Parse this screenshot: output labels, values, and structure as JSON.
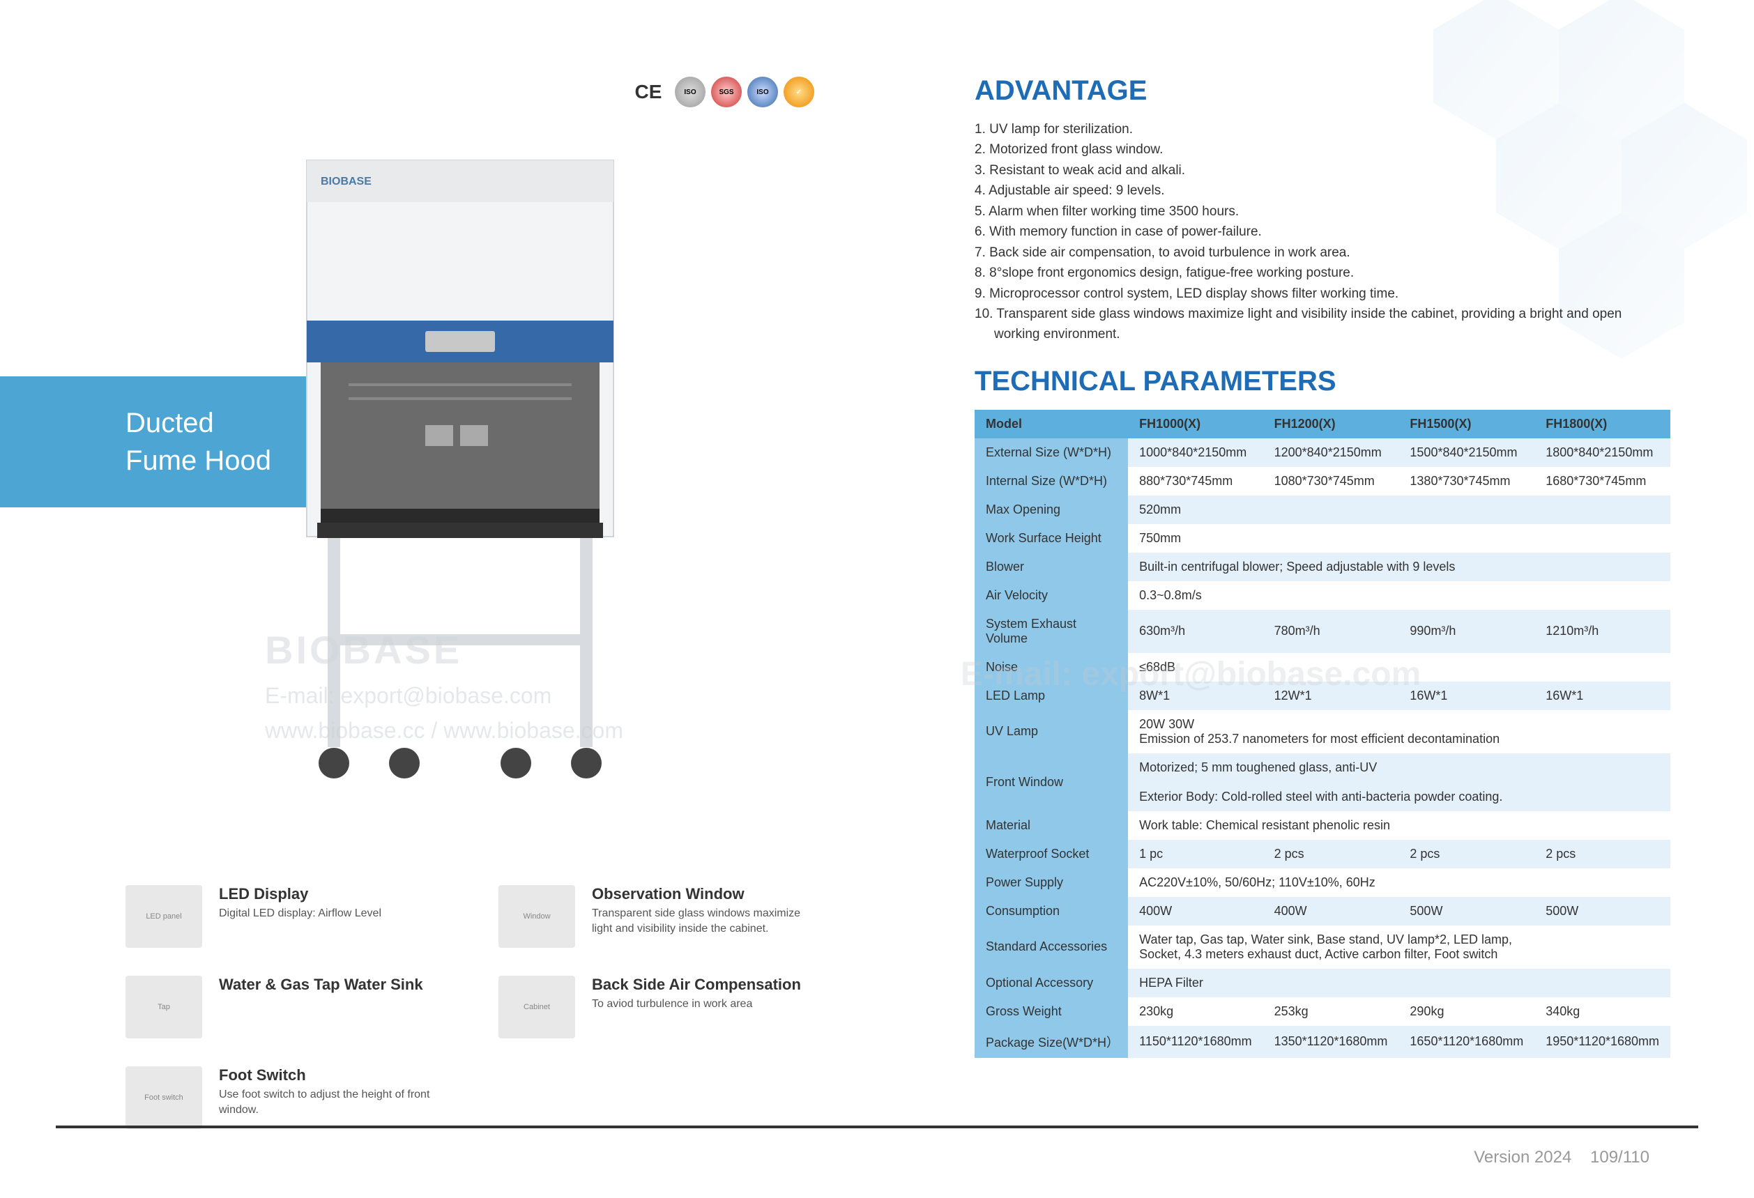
{
  "left": {
    "title_line1": "Ducted",
    "title_line2": "Fume Hood",
    "cert_labels": [
      "CE",
      "ISO",
      "SGS",
      "ISO",
      "✓"
    ],
    "watermark_brand": "BIOBASE",
    "watermark_email": "E-mail: export@biobase.com",
    "watermark_web": "www.biobase.cc / www.biobase.com",
    "features": [
      {
        "title": "LED Display",
        "desc": "Digital LED display: Airflow Level",
        "thumb": "LED panel"
      },
      {
        "title": "Observation Window",
        "desc": "Transparent side glass windows maximize light and visibility inside the cabinet.",
        "thumb": "Window"
      },
      {
        "title": "Water & Gas Tap Water Sink",
        "desc": "",
        "thumb": "Tap"
      },
      {
        "title": "Back Side Air Compensation",
        "desc": "To aviod turbulence in work area",
        "thumb": "Cabinet"
      },
      {
        "title": "Foot Switch",
        "desc": "Use foot switch to adjust the height of front window.",
        "thumb": "Foot switch"
      },
      {
        "title": "",
        "desc": "",
        "thumb": ""
      }
    ]
  },
  "right": {
    "advantage_title": "ADVANTAGE",
    "advantages": [
      "1. UV lamp for sterilization.",
      "2. Motorized front glass window.",
      "3. Resistant to weak acid and alkali.",
      "4. Adjustable air speed: 9 levels.",
      "5. Alarm when filter working time 3500 hours.",
      "6. With memory function in case of power-failure.",
      "7. Back side air compensation, to avoid turbulence in work area.",
      "8. 8°slope front ergonomics design, fatigue-free working posture.",
      "9. Microprocessor control system, LED display shows filter working time.",
      "10. Transparent side glass windows maximize light and visibility inside the cabinet, providing a bright and open working environment."
    ],
    "tech_title": "TECHNICAL PARAMETERS",
    "table": {
      "header_label": "Model",
      "models": [
        "FH1000(X)",
        "FH1200(X)",
        "FH1500(X)",
        "FH1800(X)"
      ],
      "rows": [
        {
          "label": "External Size (W*D*H)",
          "span": false,
          "cells": [
            "1000*840*2150mm",
            "1200*840*2150mm",
            "1500*840*2150mm",
            "1800*840*2150mm"
          ]
        },
        {
          "label": "Internal Size (W*D*H)",
          "span": false,
          "cells": [
            "880*730*745mm",
            "1080*730*745mm",
            "1380*730*745mm",
            "1680*730*745mm"
          ]
        },
        {
          "label": "Max Opening",
          "span": true,
          "cells": [
            "520mm"
          ]
        },
        {
          "label": "Work Surface Height",
          "span": true,
          "cells": [
            "750mm"
          ]
        },
        {
          "label": "Blower",
          "span": true,
          "cells": [
            "Built-in centrifugal blower; Speed adjustable with 9 levels"
          ]
        },
        {
          "label": "Air Velocity",
          "span": true,
          "cells": [
            "0.3~0.8m/s"
          ]
        },
        {
          "label": "System Exhaust Volume",
          "span": false,
          "cells": [
            "630m³/h",
            "780m³/h",
            "990m³/h",
            "1210m³/h"
          ]
        },
        {
          "label": "Noise",
          "span": true,
          "cells": [
            "≤68dB"
          ]
        },
        {
          "label": "LED Lamp",
          "span": false,
          "cells": [
            "8W*1",
            "12W*1",
            "16W*1",
            "16W*1"
          ]
        },
        {
          "label": "UV Lamp",
          "span": true,
          "cells": [
            "20W                                   30W\nEmission of 253.7 nanometers for most efficient decontamination"
          ]
        },
        {
          "label": "Front Window",
          "span": true,
          "cells": [
            "Motorized; 5 mm toughened glass, anti-UV\n\nExterior Body: Cold-rolled steel with anti-bacteria powder coating."
          ]
        },
        {
          "label": "Material",
          "span": true,
          "cells": [
            "Work table: Chemical resistant phenolic resin"
          ]
        },
        {
          "label": "Waterproof Socket",
          "span": false,
          "cells": [
            "1 pc",
            "2 pcs",
            "2 pcs",
            "2 pcs"
          ]
        },
        {
          "label": "Power Supply",
          "span": true,
          "cells": [
            "AC220V±10%, 50/60Hz; 110V±10%, 60Hz"
          ]
        },
        {
          "label": "Consumption",
          "span": false,
          "cells": [
            "400W",
            "400W",
            "500W",
            "500W"
          ]
        },
        {
          "label": "Standard Accessories",
          "span": true,
          "cells": [
            "Water tap, Gas tap, Water sink, Base stand, UV lamp*2, LED lamp,\nSocket, 4.3 meters exhaust duct, Active carbon filter, Foot switch"
          ]
        },
        {
          "label": "Optional Accessory",
          "span": true,
          "cells": [
            "HEPA Filter"
          ]
        },
        {
          "label": "Gross Weight",
          "span": false,
          "cells": [
            "230kg",
            "253kg",
            "290kg",
            "340kg"
          ]
        },
        {
          "label": "Package Size(W*D*H）",
          "span": false,
          "cells": [
            "1150*1120*1680mm",
            "1350*1120*1680mm",
            "1650*1120*1680mm",
            "1950*1120*1680mm"
          ]
        }
      ],
      "colors": {
        "header_bg": "#5db0dd",
        "label_bg": "#8fc8e8",
        "odd_bg": "#ffffff",
        "even_bg": "#e4f0fa"
      }
    },
    "footer_version": "Version 2024",
    "footer_page": "109/110"
  }
}
